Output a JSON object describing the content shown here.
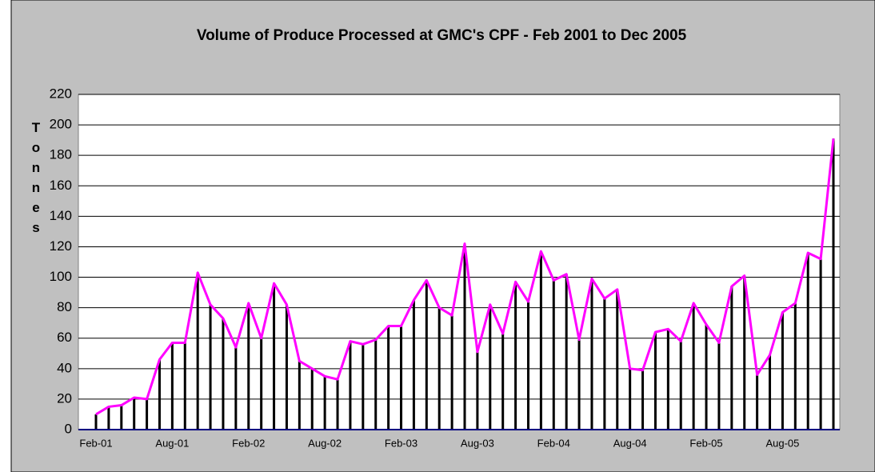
{
  "chart_data": {
    "type": "combo",
    "title": "Volume of Produce Processed at GMC's CPF - Feb 2001 to Dec 2005",
    "y_label": "Tonnes",
    "categories": [
      "Feb-01",
      null,
      null,
      null,
      null,
      null,
      "Aug-01",
      null,
      null,
      null,
      null,
      null,
      "Feb-02",
      null,
      null,
      null,
      null,
      null,
      "Aug-02",
      null,
      null,
      null,
      null,
      null,
      "Feb-03",
      null,
      null,
      null,
      null,
      null,
      "Aug-03",
      null,
      null,
      null,
      null,
      null,
      "Feb-04",
      null,
      null,
      null,
      null,
      null,
      "Aug-04",
      null,
      null,
      null,
      null,
      null,
      "Feb-05",
      null,
      null,
      null,
      null,
      null,
      "Aug-05",
      null,
      null,
      null,
      null
    ],
    "values": [
      10,
      15,
      16,
      21,
      20,
      46,
      57,
      57,
      103,
      82,
      73,
      54,
      83,
      60,
      96,
      82,
      45,
      40,
      35,
      33,
      58,
      56,
      59,
      68,
      68,
      85,
      98,
      80,
      75,
      122,
      51,
      82,
      63,
      97,
      84,
      117,
      98,
      102,
      59,
      99,
      86,
      92,
      40,
      39,
      64,
      66,
      58,
      83,
      69,
      57,
      94,
      101,
      36,
      49,
      77,
      83,
      116,
      112,
      191
    ],
    "bar_color": "#000000",
    "line_color": "#ff00ff",
    "ylim": [
      0,
      220
    ],
    "yticks": [
      0,
      20,
      40,
      60,
      80,
      100,
      120,
      140,
      160,
      180,
      200,
      220
    ],
    "grid": true
  }
}
